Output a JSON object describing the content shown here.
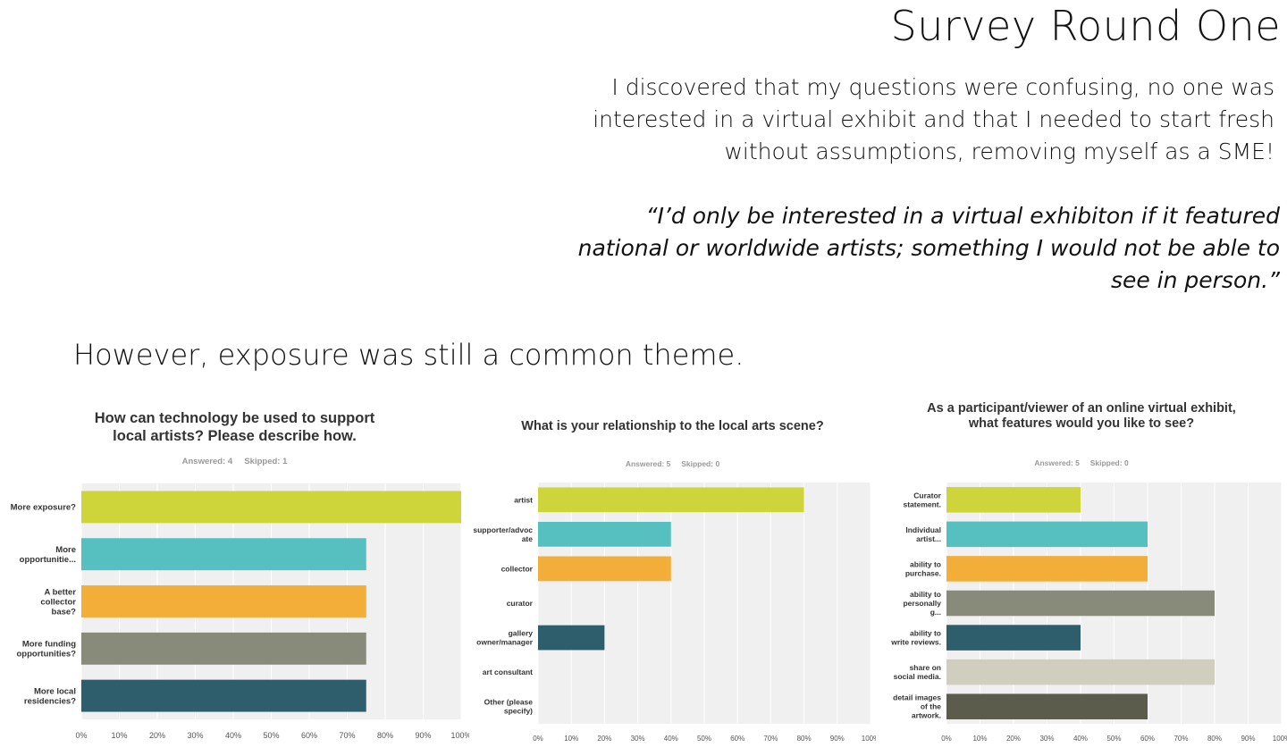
{
  "header": {
    "title": "Survey Round One",
    "intro": "I discovered that my questions were confusing, no one was interested in a virtual exhibit and that I needed to start fresh without assumptions, removing myself as a SME!",
    "quote": "“I’d only be interested in a virtual exhibiton if it featured national or worldwide artists; something I would not be able to see in person.”",
    "theme": "However, exposure was still a common theme."
  },
  "colors": {
    "plot_bg": "#f0f0f0",
    "grid": "#ffffff",
    "palette": [
      "#cdd53a",
      "#56bfc0",
      "#f3ae3a",
      "#888a7a",
      "#2e5e6c",
      "#d0cfbf",
      "#5c5c4c"
    ]
  },
  "chart_data": [
    {
      "type": "bar",
      "orientation": "horizontal",
      "title": "How can technology be used to support local artists? Please describe how.",
      "answered": "Answered: 4",
      "skipped": "Skipped: 1",
      "categories": [
        "More exposure?",
        "More opportunitie...",
        "A better collector base?",
        "More funding opportunities?",
        "More local residencies?"
      ],
      "values": [
        100,
        75,
        75,
        75,
        75
      ],
      "xlim": [
        0,
        100
      ],
      "xticks": [
        "0%",
        "10%",
        "20%",
        "30%",
        "40%",
        "50%",
        "60%",
        "70%",
        "80%",
        "90%",
        "100%"
      ],
      "grid": true
    },
    {
      "type": "bar",
      "orientation": "horizontal",
      "title": "What is your relationship to the local arts scene?",
      "answered": "Answered: 5",
      "skipped": "Skipped: 0",
      "categories": [
        "artist",
        "supporter/advoc ate",
        "collector",
        "curator",
        "gallery owner/manager",
        "art consultant",
        "Other (please specify)"
      ],
      "values": [
        80,
        40,
        40,
        0,
        20,
        0,
        0
      ],
      "xlim": [
        0,
        100
      ],
      "xticks": [
        "0%",
        "10%",
        "20%",
        "30%",
        "40%",
        "50%",
        "60%",
        "70%",
        "80%",
        "90%",
        "100%"
      ],
      "grid": true
    },
    {
      "type": "bar",
      "orientation": "horizontal",
      "title": "As a participant/viewer of an online virtual exhibit, what features would you like to see?",
      "answered": "Answered: 5",
      "skipped": "Skipped: 0",
      "categories": [
        "Curator statement.",
        "Individual artist...",
        "ability to purchase.",
        "ability to personally g...",
        "ability to write reviews.",
        "share on social media.",
        "detail images of the artwork."
      ],
      "values": [
        40,
        60,
        60,
        80,
        40,
        80,
        60
      ],
      "xlim": [
        0,
        100
      ],
      "xticks": [
        "0%",
        "10%",
        "20%",
        "30%",
        "40%",
        "50%",
        "60%",
        "70%",
        "80%",
        "90%",
        "100%"
      ],
      "grid": true
    }
  ]
}
